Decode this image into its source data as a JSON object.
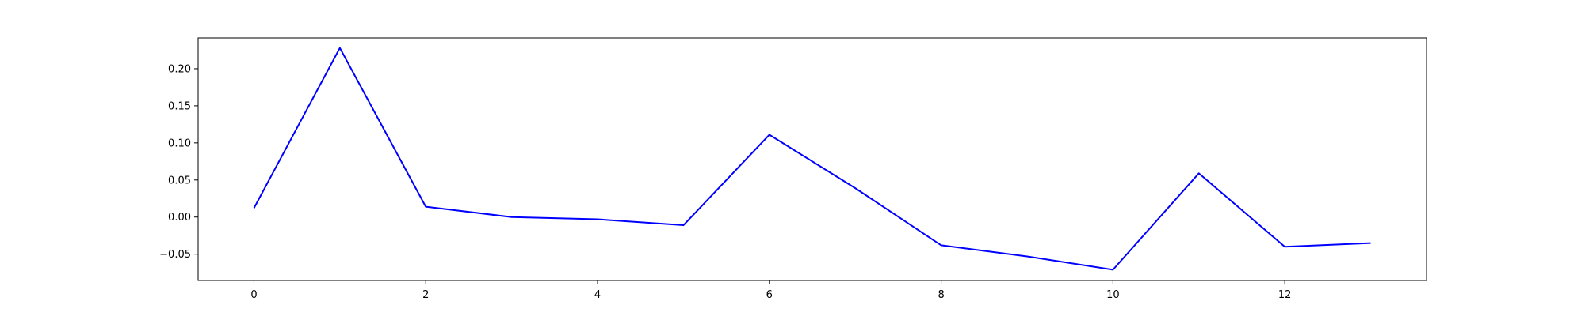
{
  "chart_data": {
    "type": "line",
    "title": "",
    "xlabel": "",
    "ylabel": "",
    "xlim": [
      -0.65,
      13.65
    ],
    "ylim": [
      -0.0855,
      0.2415
    ],
    "xticks": [
      0,
      2,
      4,
      6,
      8,
      10,
      12
    ],
    "xtick_labels": [
      "0",
      "2",
      "4",
      "6",
      "8",
      "10",
      "12"
    ],
    "yticks": [
      -0.05,
      0.0,
      0.05,
      0.1,
      0.15,
      0.2
    ],
    "ytick_labels": [
      "−0.05",
      "0.00",
      "0.05",
      "0.10",
      "0.15",
      "0.20"
    ],
    "grid": false,
    "series": [
      {
        "color": "#0000ff",
        "x": [
          0,
          1,
          2,
          3,
          4,
          5,
          6,
          7,
          8,
          9,
          10,
          11,
          12,
          13
        ],
        "values": [
          0.012,
          0.228,
          0.014,
          0.0,
          -0.003,
          -0.011,
          0.111,
          0.039,
          -0.038,
          -0.053,
          -0.071,
          0.059,
          -0.04,
          -0.035
        ]
      }
    ]
  }
}
